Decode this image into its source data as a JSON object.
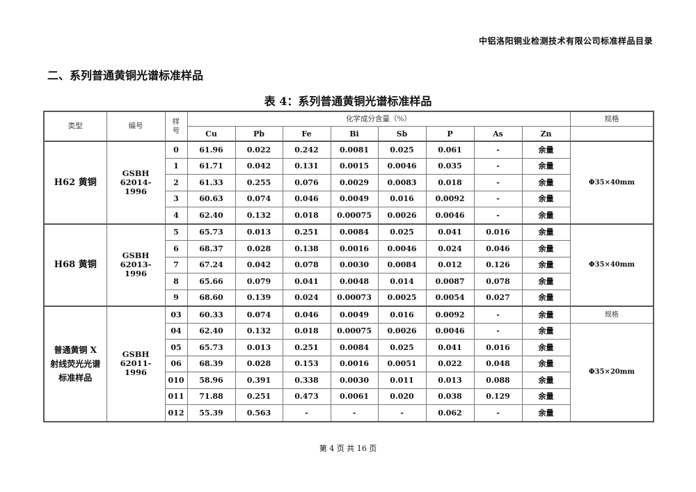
{
  "header_text": "中铝洛阳铜业检测技术有限公司标准样品目录",
  "section_title": "二、系列普通黄铜光谱标准样品",
  "table_caption": "表 4：系列普通黄铜光谱标准样品",
  "table": {
    "col_type": "类型",
    "col_code": "编号",
    "col_sample": "样号",
    "col_composition": "化学成分含量（%）",
    "col_spec": "规格",
    "elements": [
      "Cu",
      "Pb",
      "Fe",
      "Bi",
      "Sb",
      "P",
      "As",
      "Zn"
    ],
    "groups": [
      {
        "type": "H62 黄铜",
        "code": "GSBH 62014-1996",
        "spec_cells": [
          {
            "text": "Φ35×40mm",
            "rows": 5,
            "label": false
          }
        ],
        "rows": [
          [
            "0",
            "61.96",
            "0.022",
            "0.242",
            "0.0081",
            "0.025",
            "0.061",
            "-",
            "余量"
          ],
          [
            "1",
            "61.71",
            "0.042",
            "0.131",
            "0.0015",
            "0.0046",
            "0.035",
            "-",
            "余量"
          ],
          [
            "2",
            "61.33",
            "0.255",
            "0.076",
            "0.0029",
            "0.0083",
            "0.018",
            "-",
            "余量"
          ],
          [
            "3",
            "60.63",
            "0.074",
            "0.046",
            "0.0049",
            "0.016",
            "0.0092",
            "-",
            "余量"
          ],
          [
            "4",
            "62.40",
            "0.132",
            "0.018",
            "0.00075",
            "0.0026",
            "0.0046",
            "-",
            "余量"
          ]
        ]
      },
      {
        "type": "H68 黄铜",
        "code": "GSBH 62013-1996",
        "spec_cells": [
          {
            "text": "Φ35×40mm",
            "rows": 5,
            "label": false
          }
        ],
        "rows": [
          [
            "5",
            "65.73",
            "0.013",
            "0.251",
            "0.0084",
            "0.025",
            "0.041",
            "0.016",
            "余量"
          ],
          [
            "6",
            "68.37",
            "0.028",
            "0.138",
            "0.0016",
            "0.0046",
            "0.024",
            "0.046",
            "余量"
          ],
          [
            "7",
            "67.24",
            "0.042",
            "0.078",
            "0.0030",
            "0.0084",
            "0.012",
            "0.126",
            "余量"
          ],
          [
            "8",
            "65.66",
            "0.079",
            "0.041",
            "0.0048",
            "0.014",
            "0.0087",
            "0.078",
            "余量"
          ],
          [
            "9",
            "68.60",
            "0.139",
            "0.024",
            "0.00073",
            "0.0025",
            "0.0054",
            "0.027",
            "余量"
          ]
        ]
      },
      {
        "type": "普通黄铜 X 射线荧光光谱标准样品",
        "code": "GSBH 62011-1996",
        "spec_cells": [
          {
            "text": "规格",
            "rows": 1,
            "label": true
          },
          {
            "text": "Φ35×20mm",
            "rows": 6,
            "label": false
          }
        ],
        "rows": [
          [
            "03",
            "60.33",
            "0.074",
            "0.046",
            "0.0049",
            "0.016",
            "0.0092",
            "-",
            "余量"
          ],
          [
            "04",
            "62.40",
            "0.132",
            "0.018",
            "0.00075",
            "0.0026",
            "0.0046",
            "-",
            "余量"
          ],
          [
            "05",
            "65.73",
            "0.013",
            "0.251",
            "0.0084",
            "0.025",
            "0.041",
            "0.016",
            "余量"
          ],
          [
            "06",
            "68.39",
            "0.028",
            "0.153",
            "0.0016",
            "0.0051",
            "0.022",
            "0.048",
            "余量"
          ],
          [
            "010",
            "58.96",
            "0.391",
            "0.338",
            "0.0030",
            "0.011",
            "0.013",
            "0.088",
            "余量"
          ],
          [
            "011",
            "71.88",
            "0.251",
            "0.473",
            "0.0061",
            "0.020",
            "0.038",
            "0.129",
            "余量"
          ],
          [
            "012",
            "55.39",
            "0.563",
            "-",
            "-",
            "-",
            "0.062",
            "-",
            "余量"
          ]
        ]
      }
    ]
  },
  "footer": "第 4 页 共 16 页"
}
